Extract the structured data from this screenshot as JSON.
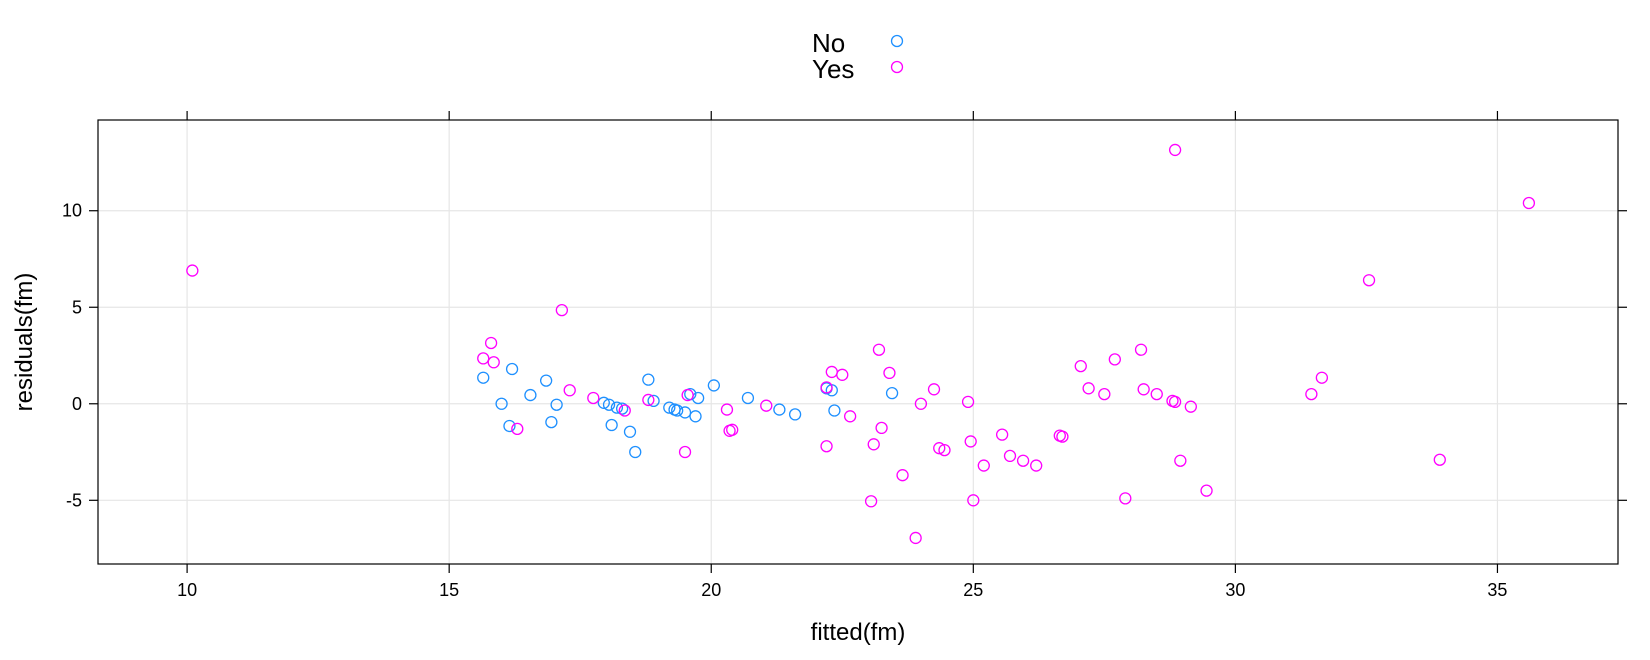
{
  "chart_data": {
    "type": "scatter",
    "title": "",
    "xlabel": "fitted(fm)",
    "ylabel": "residuals(fm)",
    "xlim": [
      8.3,
      37.3
    ],
    "ylim": [
      -8.3,
      14.7
    ],
    "xticks": [
      10,
      15,
      20,
      25,
      30,
      35
    ],
    "yticks": [
      -5,
      0,
      5,
      10
    ],
    "xtick_labels": [
      "10",
      "15",
      "20",
      "25",
      "30",
      "35"
    ],
    "ytick_labels": [
      "-5",
      "0",
      "5",
      "10"
    ],
    "grid": true,
    "legend_position": "top-center",
    "series": [
      {
        "name": "No",
        "color": "#1e90ff",
        "points": [
          [
            15.65,
            1.35
          ],
          [
            16.0,
            0.0
          ],
          [
            16.15,
            -1.15
          ],
          [
            16.2,
            1.8
          ],
          [
            16.55,
            0.45
          ],
          [
            16.85,
            1.2
          ],
          [
            16.95,
            -0.95
          ],
          [
            17.05,
            -0.05
          ],
          [
            17.95,
            0.05
          ],
          [
            18.05,
            -0.05
          ],
          [
            18.1,
            -1.1
          ],
          [
            18.2,
            -0.2
          ],
          [
            18.3,
            -0.25
          ],
          [
            18.45,
            -1.45
          ],
          [
            18.55,
            -2.5
          ],
          [
            18.8,
            1.25
          ],
          [
            18.9,
            0.15
          ],
          [
            19.2,
            -0.2
          ],
          [
            19.3,
            -0.3
          ],
          [
            19.35,
            -0.35
          ],
          [
            19.5,
            -0.45
          ],
          [
            19.6,
            0.5
          ],
          [
            19.7,
            -0.65
          ],
          [
            19.75,
            0.3
          ],
          [
            20.05,
            0.95
          ],
          [
            20.7,
            0.3
          ],
          [
            21.3,
            -0.3
          ],
          [
            21.6,
            -0.55
          ],
          [
            22.2,
            0.8
          ],
          [
            22.3,
            0.7
          ],
          [
            22.35,
            -0.35
          ],
          [
            23.45,
            0.55
          ]
        ]
      },
      {
        "name": "Yes",
        "color": "#ff00ff",
        "points": [
          [
            10.1,
            6.9
          ],
          [
            15.65,
            2.35
          ],
          [
            15.8,
            3.15
          ],
          [
            15.85,
            2.15
          ],
          [
            16.3,
            -1.3
          ],
          [
            17.15,
            4.85
          ],
          [
            17.3,
            0.7
          ],
          [
            17.75,
            0.3
          ],
          [
            18.35,
            -0.35
          ],
          [
            18.8,
            0.2
          ],
          [
            19.5,
            -2.5
          ],
          [
            19.55,
            0.45
          ],
          [
            20.3,
            -0.3
          ],
          [
            20.35,
            -1.4
          ],
          [
            20.4,
            -1.35
          ],
          [
            21.05,
            -0.1
          ],
          [
            22.2,
            0.85
          ],
          [
            22.2,
            -2.2
          ],
          [
            22.3,
            1.65
          ],
          [
            22.5,
            1.5
          ],
          [
            22.65,
            -0.65
          ],
          [
            23.05,
            -5.05
          ],
          [
            23.1,
            -2.1
          ],
          [
            23.2,
            2.8
          ],
          [
            23.25,
            -1.25
          ],
          [
            23.4,
            1.6
          ],
          [
            23.65,
            -3.7
          ],
          [
            23.9,
            -6.95
          ],
          [
            24.0,
            0.0
          ],
          [
            24.25,
            0.75
          ],
          [
            24.35,
            -2.3
          ],
          [
            24.45,
            -2.4
          ],
          [
            24.9,
            0.1
          ],
          [
            24.95,
            -1.95
          ],
          [
            25.0,
            -5.0
          ],
          [
            25.2,
            -3.2
          ],
          [
            25.55,
            -1.6
          ],
          [
            25.7,
            -2.7
          ],
          [
            25.95,
            -2.95
          ],
          [
            26.2,
            -3.2
          ],
          [
            26.65,
            -1.65
          ],
          [
            26.7,
            -1.7
          ],
          [
            27.05,
            1.95
          ],
          [
            27.2,
            0.8
          ],
          [
            27.5,
            0.5
          ],
          [
            27.7,
            2.3
          ],
          [
            27.9,
            -4.9
          ],
          [
            28.2,
            2.8
          ],
          [
            28.25,
            0.75
          ],
          [
            28.5,
            0.5
          ],
          [
            28.8,
            0.15
          ],
          [
            28.85,
            0.1
          ],
          [
            28.85,
            13.15
          ],
          [
            28.95,
            -2.95
          ],
          [
            29.15,
            -0.15
          ],
          [
            29.45,
            -4.5
          ],
          [
            31.45,
            0.5
          ],
          [
            31.65,
            1.35
          ],
          [
            32.55,
            6.4
          ],
          [
            33.9,
            -2.9
          ],
          [
            35.6,
            10.4
          ]
        ]
      }
    ]
  }
}
